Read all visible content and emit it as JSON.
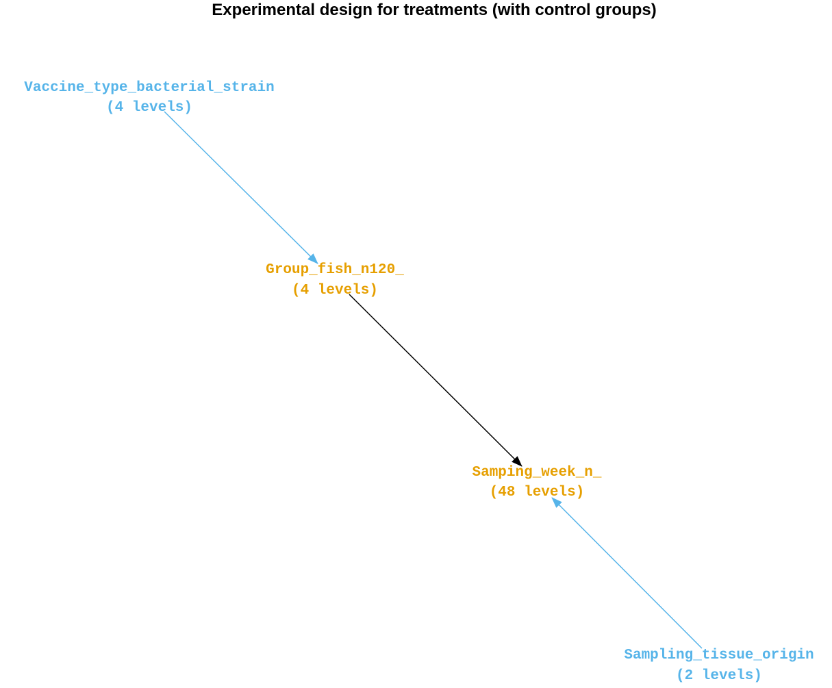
{
  "title": "Experimental design for treatments (with control groups)",
  "colors": {
    "control": "#56B4E9",
    "treatment": "#E69F00",
    "main_edge": "#000000"
  },
  "nodes": [
    {
      "id": "vaccine",
      "name": "Vaccine_type_bacterial_strain",
      "levels": "(4 levels)",
      "role": "control"
    },
    {
      "id": "group",
      "name": "Group_fish_n120_",
      "levels": "(4 levels)",
      "role": "treatment"
    },
    {
      "id": "week",
      "name": "Samping_week_n_",
      "levels": "(48 levels)",
      "role": "treatment"
    },
    {
      "id": "tissue",
      "name": "Sampling_tissue_origin",
      "levels": "(2 levels)",
      "role": "control"
    }
  ],
  "edges": [
    {
      "from": "vaccine",
      "to": "group",
      "role": "control"
    },
    {
      "from": "group",
      "to": "week",
      "role": "main"
    },
    {
      "from": "tissue",
      "to": "week",
      "role": "control"
    }
  ]
}
